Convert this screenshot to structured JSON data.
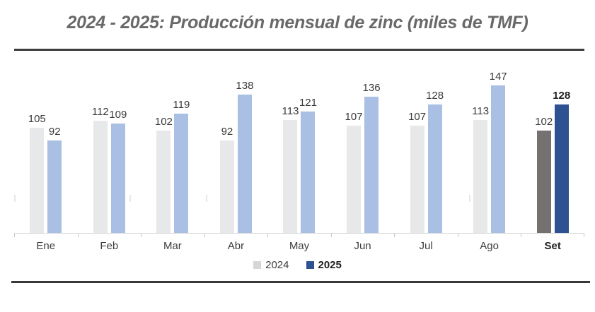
{
  "title": "2024 - 2025: Producción mensual de zinc (miles de TMF)",
  "chart_data": {
    "type": "bar",
    "title": "2024 - 2025: Producción mensual de zinc (miles de TMF)",
    "xlabel": "",
    "ylabel": "",
    "ylim": [
      0,
      165
    ],
    "grid": false,
    "legend_position": "bottom",
    "data_labels": true,
    "categories": [
      "Ene",
      "Feb",
      "Mar",
      "Abr",
      "May",
      "Jun",
      "Jul",
      "Ago",
      "Set"
    ],
    "series": [
      {
        "name": "2024",
        "values": [
          105,
          112,
          102,
          92,
          113,
          107,
          107,
          113,
          102
        ],
        "color": "#e7e8ea",
        "highlight_color": "#767171"
      },
      {
        "name": "2025",
        "values": [
          92,
          109,
          119,
          138,
          121,
          136,
          128,
          147,
          128
        ],
        "color": "#a9bfe3",
        "highlight_color": "#2e5191"
      }
    ],
    "highlight_category": "Set"
  },
  "legend": {
    "items": [
      {
        "label": "2024",
        "color": "#d6d6d6",
        "bold": false
      },
      {
        "label": "2025",
        "color": "#2e5191",
        "bold": true
      }
    ]
  },
  "colors": {
    "title_text": "#696969",
    "rule": "#3d3d3d",
    "axis_line": "#d9d9d9",
    "value_label": "#3a3a3a",
    "highlight_label": "#1f1f1f"
  },
  "artifacts": {
    "ghost_tick_x": [
      20,
      183,
      291,
      663
    ],
    "ghost_tick_y": 276
  }
}
